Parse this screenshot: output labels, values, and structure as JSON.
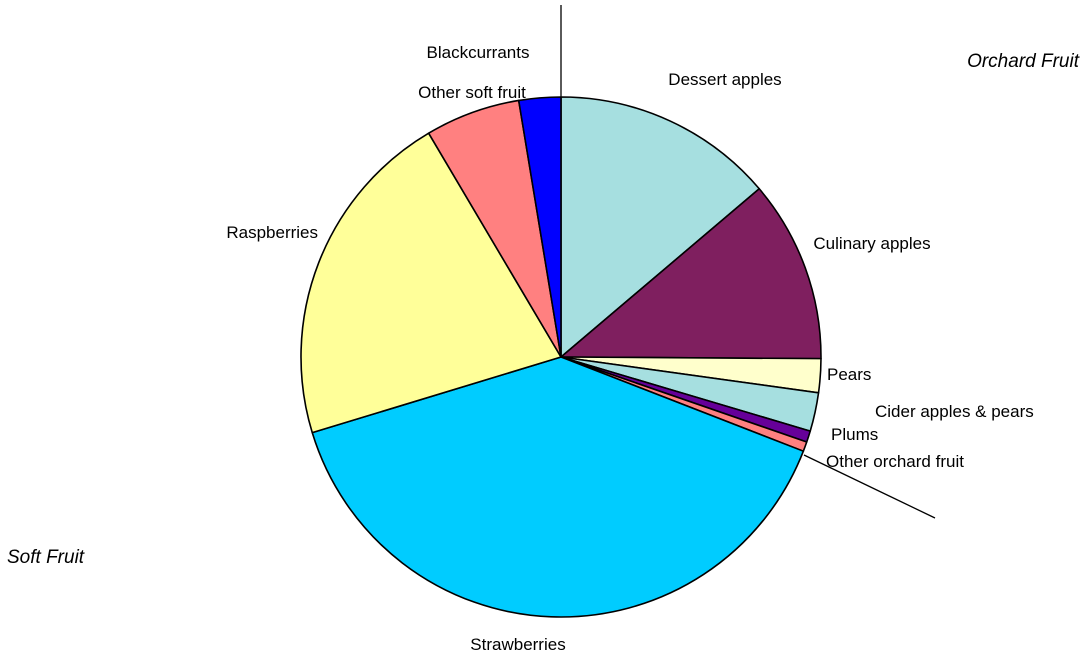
{
  "chart_data": {
    "type": "pie",
    "title": "",
    "groups": [
      {
        "name": "Orchard Fruit",
        "slices": [
          "Dessert apples",
          "Culinary apples",
          "Pears",
          "Cider apples & pears",
          "Plums",
          "Other orchard fruit"
        ]
      },
      {
        "name": "Soft Fruit",
        "slices": [
          "Strawberries",
          "Raspberries",
          "Other soft fruit",
          "Blackcurrants"
        ]
      }
    ],
    "slices": [
      {
        "label": "Dessert apples",
        "value": 13.8,
        "color": "#A6DFE0"
      },
      {
        "label": "Culinary apples",
        "value": 11.3,
        "color": "#7F1F5F"
      },
      {
        "label": "Pears",
        "value": 2.1,
        "color": "#FFFFCC"
      },
      {
        "label": "Cider apples & pears",
        "value": 2.4,
        "color": "#A6DFE0"
      },
      {
        "label": "Plums",
        "value": 0.7,
        "color": "#660099"
      },
      {
        "label": "Other orchard fruit",
        "value": 0.6,
        "color": "#FF8080"
      },
      {
        "label": "Strawberries",
        "value": 39.4,
        "color": "#00CCFF"
      },
      {
        "label": "Raspberries",
        "value": 21.2,
        "color": "#FFFF99"
      },
      {
        "label": "Other soft fruit",
        "value": 5.9,
        "color": "#FF8080"
      },
      {
        "label": "Blackcurrants",
        "value": 2.6,
        "color": "#0000FF"
      }
    ]
  }
}
